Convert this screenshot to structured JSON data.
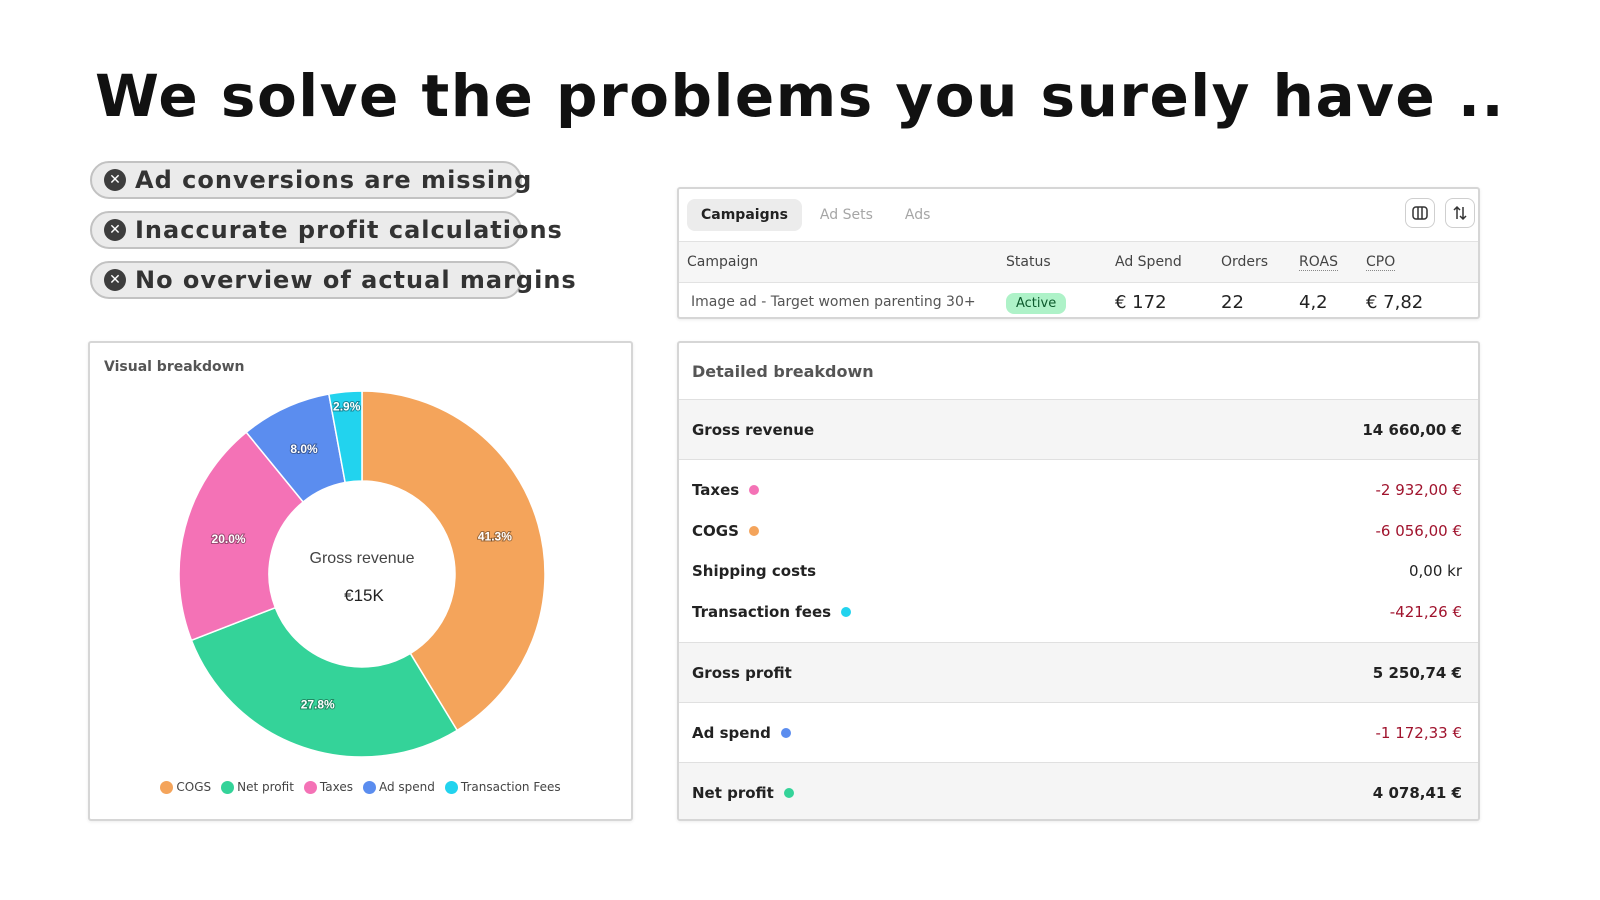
{
  "headline": "We solve the problems you surely have ..",
  "problems": [
    {
      "icon": "close-circle-icon",
      "text": "Ad conversions are missing"
    },
    {
      "icon": "close-circle-icon",
      "text": "Inaccurate profit calculations"
    },
    {
      "icon": "close-circle-icon",
      "text": "No overview of actual margins"
    }
  ],
  "campaigns": {
    "tabs": [
      "Campaigns",
      "Ad Sets",
      "Ads"
    ],
    "active_tab": "Campaigns",
    "columns": [
      "Campaign",
      "Status",
      "Ad Spend",
      "Orders",
      "ROAS",
      "CPO"
    ],
    "rows": [
      {
        "campaign": "Image ad - Target women parenting 30+",
        "status": "Active",
        "ad_spend": "€ 172",
        "orders": "22",
        "roas": "4,2",
        "cpo": "€ 7,82"
      }
    ],
    "icons": {
      "columns": "columns-icon",
      "sort": "sort-arrows-icon"
    }
  },
  "visual_breakdown": {
    "title": "Visual breakdown",
    "center_label": "Gross revenue",
    "center_value": "€15K"
  },
  "chart_data": {
    "type": "pie",
    "title": "",
    "categories": [
      "COGS",
      "Net profit",
      "Taxes",
      "Ad spend",
      "Transaction Fees"
    ],
    "values": [
      41.3,
      27.8,
      20.0,
      8.0,
      2.9
    ],
    "labels": [
      "41.3%",
      "27.8%",
      "20.0%",
      "8.0%",
      "2.9%"
    ],
    "colors": [
      "#f4a45b",
      "#34d399",
      "#f472b6",
      "#5b8def",
      "#22d3ee"
    ],
    "legend": "bottom"
  },
  "detailed_breakdown": {
    "title": "Detailed breakdown",
    "gross_revenue": {
      "label": "Gross revenue",
      "value": "14 660,00 €"
    },
    "costs": [
      {
        "label": "Taxes",
        "value": "-2 932,00 €",
        "color": "#f472b6"
      },
      {
        "label": "COGS",
        "value": "-6 056,00 €",
        "color": "#f4a45b"
      },
      {
        "label": "Shipping costs",
        "value": "0,00 kr",
        "color": ""
      },
      {
        "label": "Transaction fees",
        "value": "-421,26 €",
        "color": "#22d3ee"
      }
    ],
    "gross_profit": {
      "label": "Gross profit",
      "value": "5 250,74 €"
    },
    "ad_spend": {
      "label": "Ad spend",
      "value": "-1 172,33 €",
      "color": "#5b8def"
    },
    "net_profit": {
      "label": "Net profit",
      "value": "4 078,41 €",
      "color": "#34d399"
    }
  }
}
